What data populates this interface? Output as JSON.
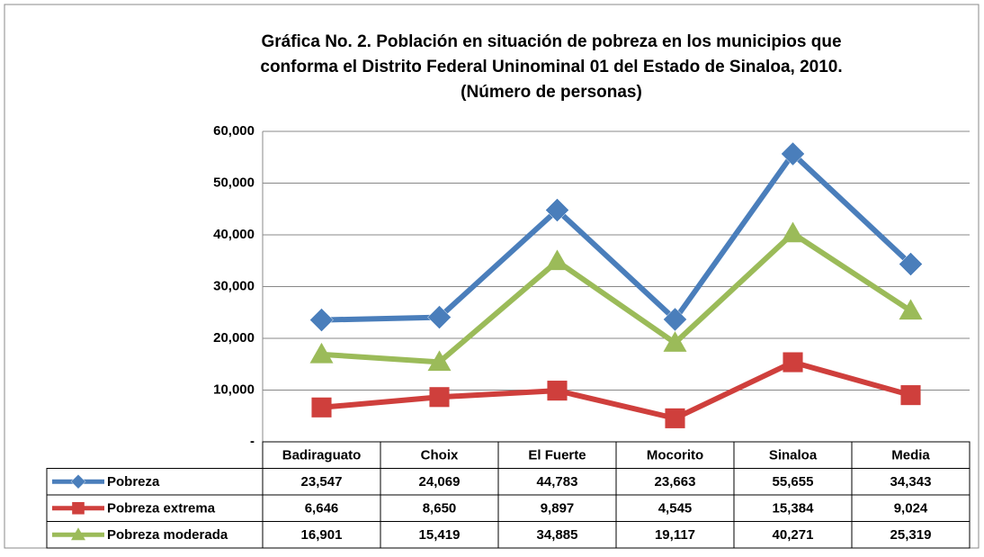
{
  "chart_data": {
    "type": "line",
    "title": [
      "Gráfica No. 2. Población en situación de pobreza en los municipios que",
      "conforma el Distrito Federal  Uninominal 01 del Estado de Sinaloa, 2010.",
      "(Número de personas)"
    ],
    "categories": [
      "Badiraguato",
      "Choix",
      "El Fuerte",
      "Mocorito",
      "Sinaloa",
      "Media"
    ],
    "series": [
      {
        "name": "Pobreza",
        "color": "#4a7ebb",
        "marker": "diamond",
        "values": [
          23547,
          24069,
          44783,
          23663,
          55655,
          34343
        ],
        "value_labels": [
          "23,547",
          "24,069",
          "44,783",
          "23,663",
          "55,655",
          "34,343"
        ]
      },
      {
        "name": "Pobreza extrema",
        "color": "#cf3f3c",
        "marker": "square",
        "values": [
          6646,
          8650,
          9897,
          4545,
          15384,
          9024
        ],
        "value_labels": [
          "6,646",
          "8,650",
          "9,897",
          "4,545",
          "15,384",
          "9,024"
        ]
      },
      {
        "name": "Pobreza moderada",
        "color": "#9bbb59",
        "marker": "triangle",
        "values": [
          16901,
          15419,
          34885,
          19117,
          40271,
          25319
        ],
        "value_labels": [
          "16,901",
          "15,419",
          "34,885",
          "19,117",
          "40,271",
          "25,319"
        ]
      }
    ],
    "ylim": [
      0,
      60000
    ],
    "yticks": [
      {
        "value": 0,
        "label": "-"
      },
      {
        "value": 10000,
        "label": "10,000"
      },
      {
        "value": 20000,
        "label": "20,000"
      },
      {
        "value": 30000,
        "label": "30,000"
      },
      {
        "value": 40000,
        "label": "40,000"
      },
      {
        "value": 50000,
        "label": "50,000"
      },
      {
        "value": 60000,
        "label": "60,000"
      }
    ],
    "grid": true
  }
}
